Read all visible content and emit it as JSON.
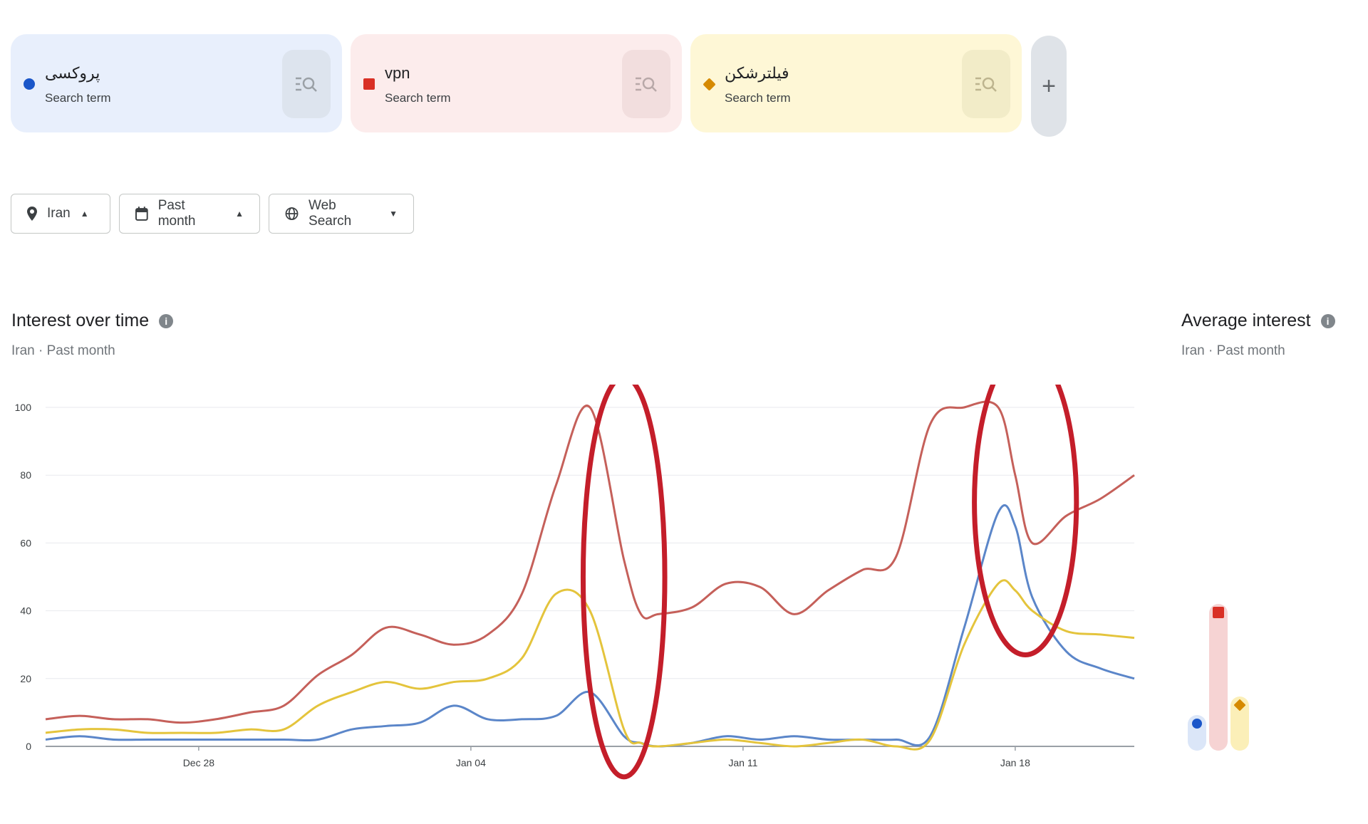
{
  "terms": [
    {
      "name": "پروکسی",
      "sub": "Search term",
      "color": "#1a56c9",
      "shape": "circle",
      "bg": "#e8effc",
      "btn": "#dde4ee"
    },
    {
      "name": "vpn",
      "sub": "Search term",
      "color": "#d93025",
      "shape": "square",
      "bg": "#fcecec",
      "btn": "#f2dede"
    },
    {
      "name": "فیلترشکن",
      "sub": "Search term",
      "color": "#d68a00",
      "shape": "diamond",
      "bg": "#fef7d6",
      "btn": "#f2ecc8"
    }
  ],
  "add_label": "+",
  "filters": {
    "region": "Iran",
    "period": "Past month",
    "search_type": "Web Search"
  },
  "interest_title": "Interest over time",
  "interest_sub": "Iran · Past month",
  "average_title": "Average interest",
  "average_sub": "Iran · Past month",
  "chart_data": {
    "type": "line",
    "ylim": [
      0,
      100
    ],
    "yticks": [
      0,
      20,
      40,
      60,
      80,
      100
    ],
    "xlim": [
      0,
      32
    ],
    "xticks": [
      {
        "x": 4.5,
        "label": "Dec 28"
      },
      {
        "x": 12.5,
        "label": "Jan 04"
      },
      {
        "x": 20.5,
        "label": "Jan 11"
      },
      {
        "x": 28.5,
        "label": "Jan 18"
      }
    ],
    "grid": true,
    "legend": "none",
    "series": [
      {
        "color": "#5b86c9",
        "x": [
          0,
          1,
          2,
          3,
          4,
          5,
          6,
          7,
          8,
          9,
          10,
          11,
          12,
          13,
          14,
          15,
          16,
          17,
          17.5,
          18,
          19,
          20,
          21,
          22,
          23,
          24,
          25,
          26,
          27,
          28,
          28.5,
          29,
          30,
          31,
          32
        ],
        "y": [
          2,
          3,
          2,
          2,
          2,
          2,
          2,
          2,
          2,
          5,
          6,
          7,
          12,
          8,
          8,
          9,
          16,
          3,
          1,
          0,
          1,
          3,
          2,
          3,
          2,
          2,
          2,
          3,
          35,
          69,
          65,
          44,
          28,
          23,
          20
        ]
      },
      {
        "color": "#c5605a",
        "x": [
          0,
          1,
          2,
          3,
          4,
          5,
          6,
          7,
          8,
          9,
          10,
          11,
          12,
          13,
          14,
          15,
          16,
          17,
          17.5,
          18,
          19,
          20,
          21,
          22,
          23,
          24,
          25,
          26,
          27,
          28,
          28.5,
          29,
          30,
          31,
          32
        ],
        "y": [
          8,
          9,
          8,
          8,
          7,
          8,
          10,
          12,
          21,
          27,
          35,
          33,
          30,
          33,
          45,
          77,
          100,
          55,
          39,
          39,
          41,
          48,
          47,
          39,
          46,
          52,
          56,
          95,
          100,
          100,
          80,
          60,
          68,
          73,
          80
        ]
      },
      {
        "color": "#e4c43c",
        "x": [
          0,
          1,
          2,
          3,
          4,
          5,
          6,
          7,
          8,
          9,
          10,
          11,
          12,
          13,
          14,
          15,
          16,
          17,
          17.5,
          18,
          19,
          20,
          21,
          22,
          23,
          24,
          25,
          26,
          27,
          28,
          28.5,
          29,
          30,
          31,
          32
        ],
        "y": [
          4,
          5,
          5,
          4,
          4,
          4,
          5,
          5,
          12,
          16,
          19,
          17,
          19,
          20,
          26,
          45,
          40,
          5,
          1,
          0,
          1,
          2,
          1,
          0,
          1,
          2,
          0,
          2,
          30,
          48,
          46,
          40,
          34,
          33,
          32
        ]
      }
    ],
    "annotations": [
      {
        "type": "ellipse",
        "cx": 17,
        "cy": 50,
        "rx": 1.2,
        "ry": 59,
        "color": "#c41e2a"
      },
      {
        "type": "ellipse",
        "cx": 28.8,
        "cy": 72,
        "rx": 1.5,
        "ry": 45,
        "color": "#c41e2a"
      }
    ]
  },
  "average_data": {
    "type": "bar",
    "ylim": [
      0,
      100
    ],
    "series": [
      {
        "color": "#1a56c9",
        "bar": "#dbe6f8",
        "shape": "circle",
        "value": 5
      },
      {
        "color": "#d93025",
        "bar": "#f6d3d3",
        "shape": "square",
        "value": 35
      },
      {
        "color": "#d68a00",
        "bar": "#fbefb8",
        "shape": "diamond",
        "value": 10
      }
    ]
  }
}
